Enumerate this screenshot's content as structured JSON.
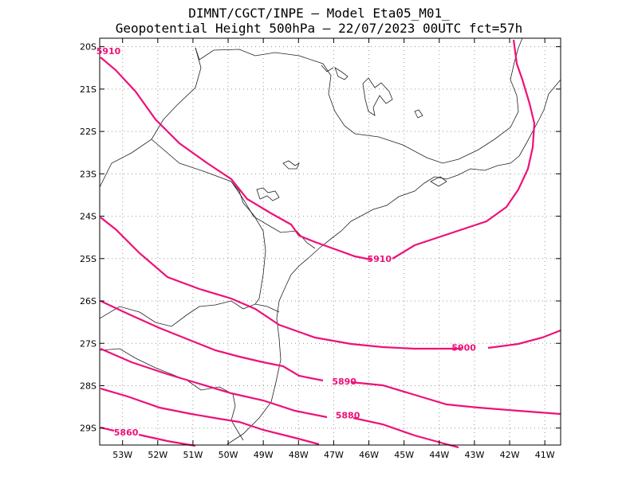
{
  "title_line1": "DIMNT/CGCT/INPE  –   Model Eta05_M01_",
  "title_line2": "Geopotential Height 500hPa  –   22/07/2023 00UTC fct=57h",
  "lat_ticks": [
    "20S",
    "21S",
    "22S",
    "23S",
    "24S",
    "25S",
    "26S",
    "27S",
    "28S",
    "29S"
  ],
  "lon_ticks": [
    "53W",
    "52W",
    "51W",
    "50W",
    "49W",
    "48W",
    "47W",
    "46W",
    "45W",
    "44W",
    "43W",
    "42W",
    "41W"
  ],
  "contour_color": "#ee1177",
  "map": {
    "lon_range": [
      -53.65,
      -40.55
    ],
    "lat_range": [
      -29.4,
      -19.8
    ],
    "grid": true,
    "projection": "lat-lon"
  },
  "contours": [
    {
      "label": "5910",
      "label_at": [
        [
          -53.4,
          -20.1
        ],
        [
          -45.7,
          -25.0
        ]
      ]
    },
    {
      "label": "5900",
      "label_at": [
        [
          -43.3,
          -27.1
        ]
      ]
    },
    {
      "label": "5890",
      "label_at": [
        [
          -46.7,
          -27.9
        ]
      ]
    },
    {
      "label": "5880",
      "label_at": [
        [
          -46.6,
          -28.7
        ]
      ]
    },
    {
      "label": "5860",
      "label_at": [
        [
          -52.9,
          -29.1
        ]
      ]
    }
  ]
}
